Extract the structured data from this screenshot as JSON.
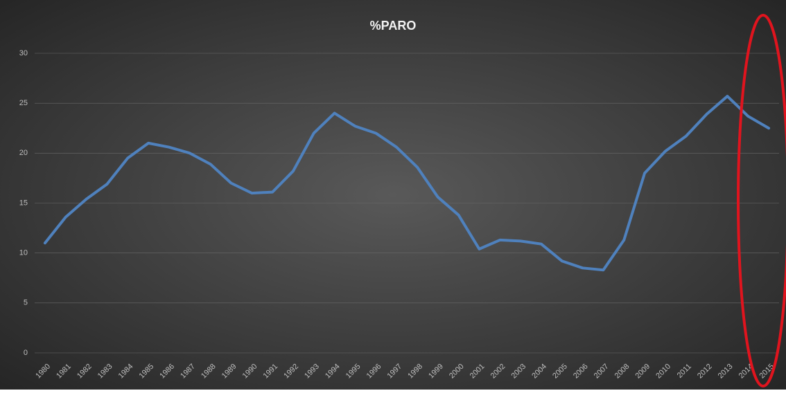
{
  "chart_data": {
    "type": "line",
    "title": "%PARO",
    "categories": [
      "1980",
      "1981",
      "1982",
      "1983",
      "1984",
      "1985",
      "1986",
      "1987",
      "1988",
      "1989",
      "1990",
      "1991",
      "1992",
      "1993",
      "1994",
      "1995",
      "1996",
      "1997",
      "1998",
      "1999",
      "2000",
      "2001",
      "2002",
      "2003",
      "2004",
      "2005",
      "2006",
      "2007",
      "2008",
      "2009",
      "2010",
      "2011",
      "2012",
      "2013",
      "2014",
      "2015"
    ],
    "series": [
      {
        "name": "%PARO",
        "color": "#4f81bd",
        "values": [
          11.0,
          13.6,
          15.4,
          16.9,
          19.5,
          21.0,
          20.6,
          20.0,
          18.9,
          17.0,
          16.0,
          16.1,
          18.2,
          22.0,
          24.0,
          22.7,
          22.0,
          20.6,
          18.6,
          15.6,
          13.8,
          10.4,
          11.3,
          11.2,
          10.9,
          9.2,
          8.5,
          8.3,
          11.3,
          18.0,
          20.2,
          21.7,
          23.9,
          25.7,
          23.7,
          22.5
        ]
      }
    ],
    "ylim": [
      0,
      30
    ],
    "yticks": [
      0,
      5,
      10,
      15,
      20,
      25,
      30
    ],
    "grid": true
  }
}
